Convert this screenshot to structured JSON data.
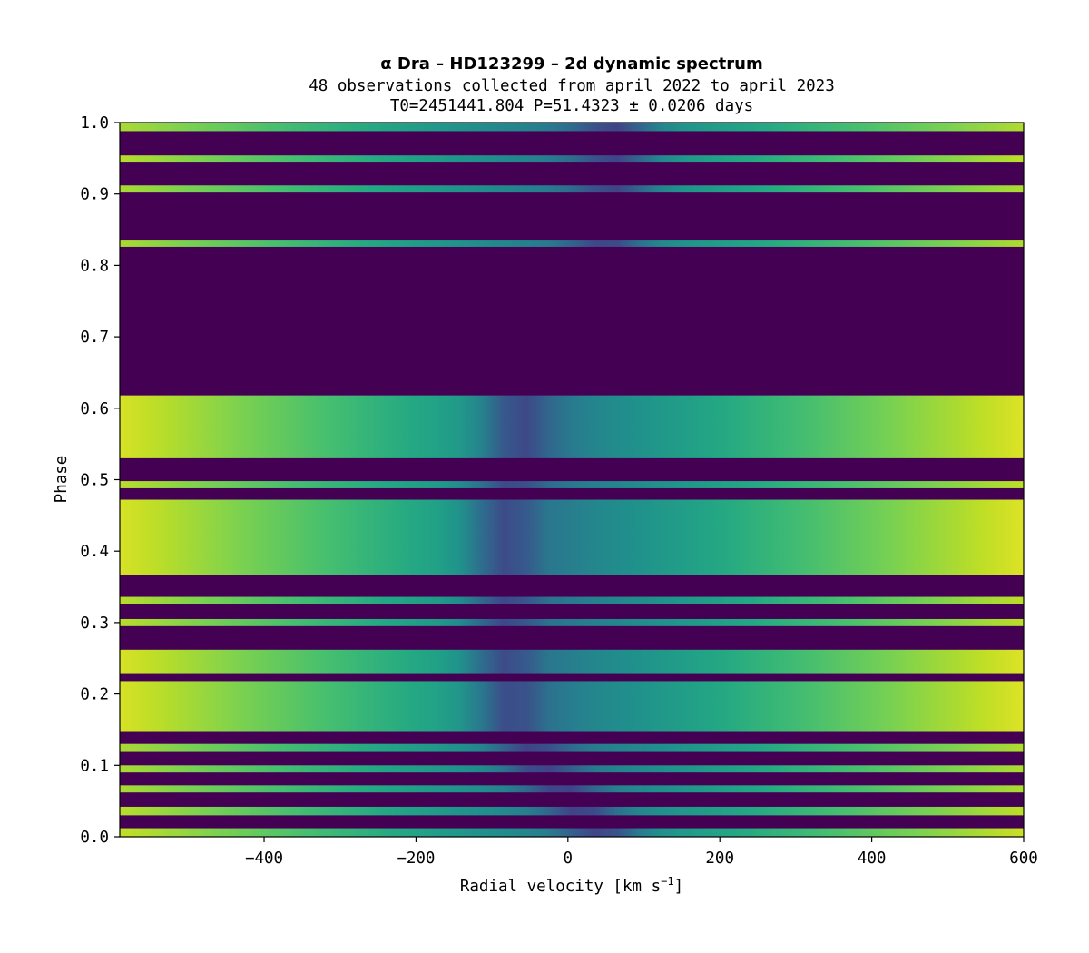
{
  "chart_data": {
    "type": "heatmap",
    "title": "α Dra – HD123299 – 2d dynamic spectrum",
    "subtitle_lines": [
      "48 observations collected from april 2022 to april 2023",
      "T0=2451441.804 P=51.4323 ± 0.0206 days"
    ],
    "xlabel": "Radial velocity [km s",
    "xlabel_superscript": "−1",
    "xlabel_suffix": "]",
    "ylabel": "Phase",
    "xlim": [
      -590,
      600
    ],
    "ylim": [
      0.0,
      1.0
    ],
    "xticks": [
      -400,
      -200,
      0,
      200,
      400,
      600
    ],
    "xtick_labels": [
      "−400",
      "−200",
      "0",
      "200",
      "400",
      "600"
    ],
    "yticks": [
      0.0,
      0.1,
      0.2,
      0.3,
      0.4,
      0.5,
      0.6,
      0.7,
      0.8,
      0.9,
      1.0
    ],
    "ytick_labels": [
      "0.0",
      "0.1",
      "0.2",
      "0.3",
      "0.4",
      "0.5",
      "0.6",
      "0.7",
      "0.8",
      "0.9",
      "1.0"
    ],
    "colormap": "viridis",
    "background_color": "#440154",
    "line_center_velocity_by_phase": [
      {
        "phase": 0.0,
        "velocity": 50
      },
      {
        "phase": 0.1,
        "velocity": -40
      },
      {
        "phase": 0.2,
        "velocity": -80
      },
      {
        "phase": 0.45,
        "velocity": -80
      },
      {
        "phase": 0.6,
        "velocity": -60
      },
      {
        "phase": 0.85,
        "velocity": 60
      },
      {
        "phase": 1.0,
        "velocity": 60
      }
    ],
    "observed_bands": [
      {
        "phase_start": 0.0,
        "phase_end": 0.012,
        "peak_intensity": 0.92
      },
      {
        "phase_start": 0.03,
        "phase_end": 0.042,
        "peak_intensity": 0.9
      },
      {
        "phase_start": 0.062,
        "phase_end": 0.072,
        "peak_intensity": 0.88
      },
      {
        "phase_start": 0.09,
        "phase_end": 0.1,
        "peak_intensity": 0.88
      },
      {
        "phase_start": 0.12,
        "phase_end": 0.13,
        "peak_intensity": 0.88
      },
      {
        "phase_start": 0.148,
        "phase_end": 0.218,
        "peak_intensity": 0.95
      },
      {
        "phase_start": 0.228,
        "phase_end": 0.262,
        "peak_intensity": 0.95
      },
      {
        "phase_start": 0.295,
        "phase_end": 0.305,
        "peak_intensity": 0.9
      },
      {
        "phase_start": 0.326,
        "phase_end": 0.336,
        "peak_intensity": 0.9
      },
      {
        "phase_start": 0.366,
        "phase_end": 0.472,
        "peak_intensity": 0.95
      },
      {
        "phase_start": 0.488,
        "phase_end": 0.498,
        "peak_intensity": 0.9
      },
      {
        "phase_start": 0.53,
        "phase_end": 0.618,
        "peak_intensity": 0.95
      },
      {
        "phase_start": 0.826,
        "phase_end": 0.836,
        "peak_intensity": 0.88
      },
      {
        "phase_start": 0.902,
        "phase_end": 0.912,
        "peak_intensity": 0.88
      },
      {
        "phase_start": 0.944,
        "phase_end": 0.954,
        "peak_intensity": 0.9
      },
      {
        "phase_start": 0.988,
        "phase_end": 1.0,
        "peak_intensity": 0.88
      }
    ]
  }
}
